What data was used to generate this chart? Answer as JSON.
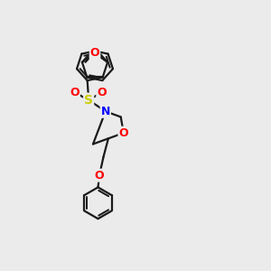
{
  "bg_color": "#ebebeb",
  "bond_color": "#1a1a1a",
  "bond_width": 1.6,
  "atom_colors": {
    "O": "#ff0000",
    "S": "#cccc00",
    "N": "#0000ff",
    "C": "#1a1a1a"
  },
  "figsize": [
    3.0,
    3.0
  ],
  "dpi": 100
}
